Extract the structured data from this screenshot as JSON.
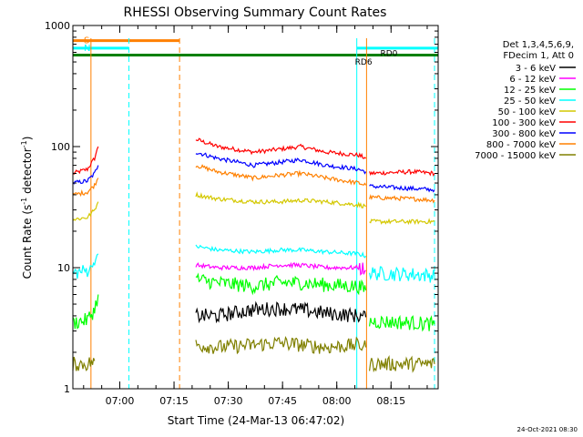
{
  "chart_data": {
    "type": "line",
    "title": "RHESSI Observing Summary Count Rates",
    "xlabel": "Start Time (24-Mar-13 06:47:02)",
    "ylabel_main": "Count Rate (s",
    "ylabel_sup1": "-1",
    "ylabel_mid": " detector",
    "ylabel_sup2": "-1",
    "ylabel_end": ")",
    "yscale": "log",
    "ylim": [
      1,
      1000
    ],
    "xlim": [
      0,
      101
    ],
    "x_units": "minutes after 06:47:02",
    "x_ticks": [
      {
        "label": "07:00",
        "value": 12.97
      },
      {
        "label": "07:15",
        "value": 27.97
      },
      {
        "label": "07:30",
        "value": 42.97
      },
      {
        "label": "07:45",
        "value": 57.97
      },
      {
        "label": "08:00",
        "value": 72.97
      },
      {
        "label": "08:15",
        "value": 87.97
      }
    ],
    "y_ticks": [
      {
        "label": "1",
        "value": 1
      },
      {
        "label": "10",
        "value": 10
      },
      {
        "label": "100",
        "value": 100
      },
      {
        "label": "1000",
        "value": 1000
      }
    ],
    "legend": {
      "position": "right",
      "header": [
        "Det 1,3,4,5,6,9,",
        "FDecim 1, Att 0"
      ],
      "entries": [
        {
          "label": "3 - 6 keV",
          "color": "#000000"
        },
        {
          "label": "6 - 12 keV",
          "color": "#ff00ff"
        },
        {
          "label": "12 - 25 keV",
          "color": "#00ff00"
        },
        {
          "label": "25 - 50 keV",
          "color": "#00ffff"
        },
        {
          "label": "50 - 100 keV",
          "color": "#d4c800"
        },
        {
          "label": "100 - 300 keV",
          "color": "#ff0000"
        },
        {
          "label": "300 - 800 keV",
          "color": "#0000ff"
        },
        {
          "label": "800 - 7000 keV",
          "color": "#ff8000"
        },
        {
          "label": "7000 - 15000 keV",
          "color": "#808000"
        }
      ]
    },
    "series": [
      {
        "color": "#ff0000",
        "segments": [
          [
            [
              0,
              60
            ],
            [
              4,
              65
            ],
            [
              6,
              80
            ],
            [
              7,
              100
            ]
          ],
          [
            [
              34,
              115
            ],
            [
              40,
              100
            ],
            [
              50,
              90
            ],
            [
              57,
              95
            ],
            [
              63,
              100
            ],
            [
              70,
              90
            ],
            [
              79,
              85
            ],
            [
              81,
              80
            ]
          ],
          [
            [
              82,
              60
            ],
            [
              94,
              62
            ],
            [
              100,
              60
            ]
          ]
        ]
      },
      {
        "color": "#0000ff",
        "segments": [
          [
            [
              0,
              50
            ],
            [
              4,
              52
            ],
            [
              6,
              60
            ],
            [
              7,
              70
            ]
          ],
          [
            [
              34,
              90
            ],
            [
              40,
              80
            ],
            [
              50,
              70
            ],
            [
              57,
              74
            ],
            [
              63,
              78
            ],
            [
              70,
              70
            ],
            [
              79,
              65
            ],
            [
              81,
              62
            ]
          ],
          [
            [
              82,
              47
            ],
            [
              94,
              45
            ],
            [
              100,
              44
            ]
          ]
        ]
      },
      {
        "color": "#ff8000",
        "segments": [
          [
            [
              0,
              40
            ],
            [
              4,
              42
            ],
            [
              6,
              48
            ],
            [
              7,
              55
            ]
          ],
          [
            [
              34,
              70
            ],
            [
              40,
              62
            ],
            [
              50,
              55
            ],
            [
              57,
              58
            ],
            [
              63,
              60
            ],
            [
              70,
              55
            ],
            [
              79,
              50
            ],
            [
              81,
              48
            ]
          ],
          [
            [
              82,
              38
            ],
            [
              94,
              37
            ],
            [
              100,
              36
            ]
          ]
        ]
      },
      {
        "color": "#d4c800",
        "segments": [
          [
            [
              0,
              25
            ],
            [
              4,
              26
            ],
            [
              6,
              30
            ],
            [
              7,
              35
            ]
          ],
          [
            [
              34,
              40
            ],
            [
              40,
              37
            ],
            [
              50,
              35
            ],
            [
              57,
              35
            ],
            [
              63,
              36
            ],
            [
              70,
              35
            ],
            [
              79,
              33
            ],
            [
              81,
              32
            ]
          ],
          [
            [
              82,
              24
            ],
            [
              94,
              24
            ],
            [
              100,
              24
            ]
          ]
        ]
      },
      {
        "color": "#00ffff",
        "segments": [
          [
            [
              0,
              9
            ],
            [
              4,
              9.5
            ],
            [
              6,
              11
            ],
            [
              7,
              13
            ]
          ],
          [
            [
              34,
              15
            ],
            [
              40,
              14
            ],
            [
              50,
              13.5
            ],
            [
              57,
              14
            ],
            [
              63,
              14
            ],
            [
              70,
              13.5
            ],
            [
              79,
              13
            ],
            [
              81,
              12.5
            ]
          ],
          [
            [
              82,
              9
            ],
            [
              94,
              8.8
            ],
            [
              100,
              8.6
            ]
          ]
        ]
      },
      {
        "color": "#ff00ff",
        "segments": [
          [
            [
              34,
              10.5
            ],
            [
              40,
              10
            ],
            [
              50,
              10
            ],
            [
              57,
              10.5
            ],
            [
              63,
              10.5
            ],
            [
              70,
              10
            ],
            [
              79,
              10
            ],
            [
              81,
              9.5
            ]
          ]
        ]
      },
      {
        "color": "#00ff00",
        "segments": [
          [
            [
              0,
              3.5
            ],
            [
              4,
              3.7
            ],
            [
              6,
              4.5
            ],
            [
              7,
              6
            ]
          ],
          [
            [
              34,
              8
            ],
            [
              40,
              7.5
            ],
            [
              50,
              7
            ],
            [
              57,
              7.5
            ],
            [
              63,
              7.5
            ],
            [
              70,
              7.2
            ],
            [
              79,
              7
            ],
            [
              81,
              6.5
            ]
          ],
          [
            [
              82,
              3.6
            ],
            [
              94,
              3.5
            ],
            [
              100,
              3.4
            ]
          ]
        ]
      },
      {
        "color": "#000000",
        "segments": [
          [
            [
              34,
              4
            ],
            [
              40,
              4
            ],
            [
              50,
              4.5
            ],
            [
              57,
              4.6
            ],
            [
              63,
              4.5
            ],
            [
              70,
              4.2
            ],
            [
              79,
              4
            ],
            [
              81,
              3.9
            ]
          ]
        ]
      },
      {
        "color": "#808000",
        "segments": [
          [
            [
              0,
              1.6
            ],
            [
              4,
              1.6
            ],
            [
              6,
              1.7
            ]
          ],
          [
            [
              34,
              2.3
            ],
            [
              40,
              2.2
            ],
            [
              50,
              2.3
            ],
            [
              57,
              2.4
            ],
            [
              63,
              2.3
            ],
            [
              70,
              2.2
            ],
            [
              79,
              2.3
            ],
            [
              81,
              2.2
            ]
          ],
          [
            [
              82,
              1.6
            ],
            [
              94,
              1.6
            ],
            [
              100,
              1.6
            ]
          ]
        ]
      }
    ],
    "flag_bars": [
      {
        "label": "S",
        "color": "#ff8000",
        "level": 750,
        "x_start": 0,
        "x_end": 29.5
      },
      {
        "label": "N",
        "color": "#00ffff",
        "level": 650,
        "x_start": 0,
        "x_end": 15.5
      },
      {
        "label": "",
        "color": "#00ffff",
        "level": 650,
        "x_start": 78.5,
        "x_end": 101
      },
      {
        "label": "",
        "color": "#008000",
        "level": 570,
        "x_start": 0,
        "x_end": 101
      }
    ],
    "annotations": [
      {
        "label": "RD0",
        "x": 85,
        "y": 590
      },
      {
        "label": "RD6",
        "x": 78,
        "y": 500
      }
    ],
    "vlines": [
      {
        "x": 5.0,
        "color": "#ff8000",
        "style": "solid"
      },
      {
        "x": 15.5,
        "color": "#00ffff",
        "style": "dashed"
      },
      {
        "x": 29.5,
        "color": "#ff8000",
        "style": "dashed"
      },
      {
        "x": 78.5,
        "color": "#00ffff",
        "style": "solid"
      },
      {
        "x": 81.2,
        "color": "#ff8000",
        "style": "solid"
      },
      {
        "x": 100,
        "color": "#00ffff",
        "style": "dashed"
      }
    ]
  },
  "footer_date": "24-Oct-2021 08:30"
}
